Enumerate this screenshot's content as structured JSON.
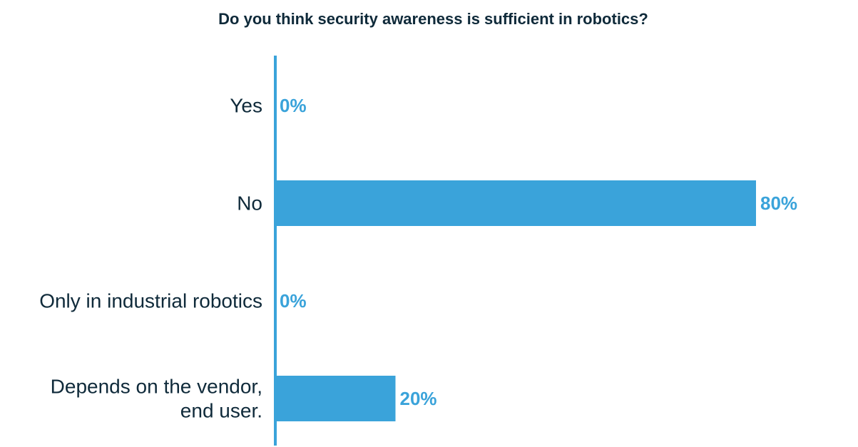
{
  "chart_data": {
    "type": "bar",
    "orientation": "horizontal",
    "title": "Do you think security awareness is sufficient in robotics?",
    "categories": [
      [
        "Yes"
      ],
      [
        "No"
      ],
      [
        "Only in industrial robotics"
      ],
      [
        "Depends on the vendor,",
        "end user."
      ]
    ],
    "values": [
      0,
      80,
      0,
      20
    ],
    "value_labels": [
      "0%",
      "80%",
      "0%",
      "20%"
    ],
    "unit": "%",
    "xlim": [
      0,
      100
    ],
    "grid": false,
    "legend": "none",
    "colors": {
      "bar": "#3aa3da",
      "axis": "#3aa3da",
      "value_label": "#3aa3da",
      "text": "#0f2a3a"
    }
  }
}
